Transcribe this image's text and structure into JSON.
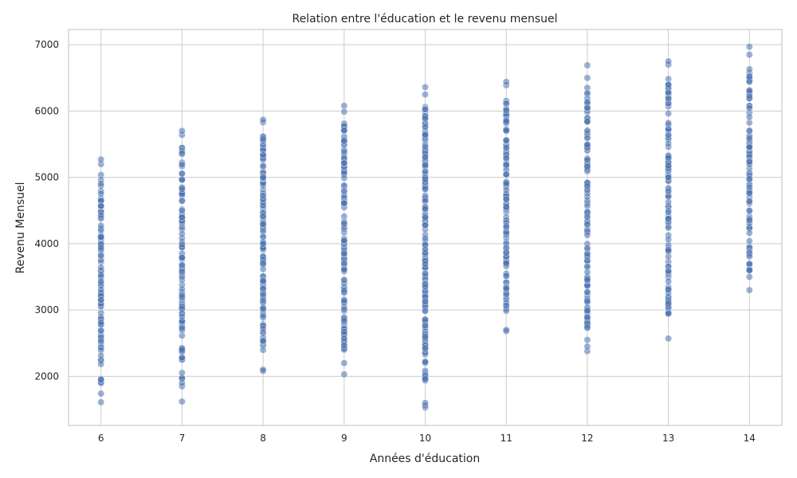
{
  "chart_data": {
    "type": "scatter",
    "title": "Relation entre l'éducation et le revenu mensuel",
    "xlabel": "Années d'éducation",
    "ylabel": "Revenu Mensuel",
    "xlim": [
      5.6,
      14.4
    ],
    "ylim": [
      1260,
      7230
    ],
    "xticks": [
      6,
      7,
      8,
      9,
      10,
      11,
      12,
      13,
      14
    ],
    "yticks": [
      2000,
      3000,
      4000,
      5000,
      6000,
      7000
    ],
    "grid": true,
    "point_color": "#4c72b0",
    "point_alpha": 0.55,
    "series": [
      {
        "x": 6,
        "min": 1600,
        "max": 5270,
        "count": 90,
        "outliers": [
          1610,
          1740,
          1900,
          1950,
          5200,
          5270
        ]
      },
      {
        "x": 7,
        "min": 1620,
        "max": 5700,
        "count": 110,
        "outliers": [
          1620,
          1850,
          1900,
          5640,
          5700
        ]
      },
      {
        "x": 8,
        "min": 2080,
        "max": 5870,
        "count": 120,
        "outliers": [
          2080,
          2100,
          5830,
          5870
        ]
      },
      {
        "x": 9,
        "min": 2030,
        "max": 6080,
        "count": 120,
        "outliers": [
          2030,
          2200,
          5990,
          6080
        ]
      },
      {
        "x": 10,
        "min": 1530,
        "max": 6360,
        "count": 180,
        "outliers": [
          1530,
          1560,
          1600,
          6250,
          6360
        ]
      },
      {
        "x": 11,
        "min": 2680,
        "max": 6440,
        "count": 120,
        "outliers": [
          2680,
          2700,
          6390,
          6440
        ]
      },
      {
        "x": 12,
        "min": 2380,
        "max": 6690,
        "count": 120,
        "outliers": [
          2380,
          2450,
          2550,
          2740,
          6500,
          6690
        ]
      },
      {
        "x": 13,
        "min": 2570,
        "max": 6750,
        "count": 110,
        "outliers": [
          2570,
          2940,
          2950,
          6700,
          6750
        ]
      },
      {
        "x": 14,
        "min": 3300,
        "max": 6970,
        "count": 90,
        "outliers": [
          3300,
          3500,
          3600,
          6850,
          6970
        ]
      }
    ]
  }
}
